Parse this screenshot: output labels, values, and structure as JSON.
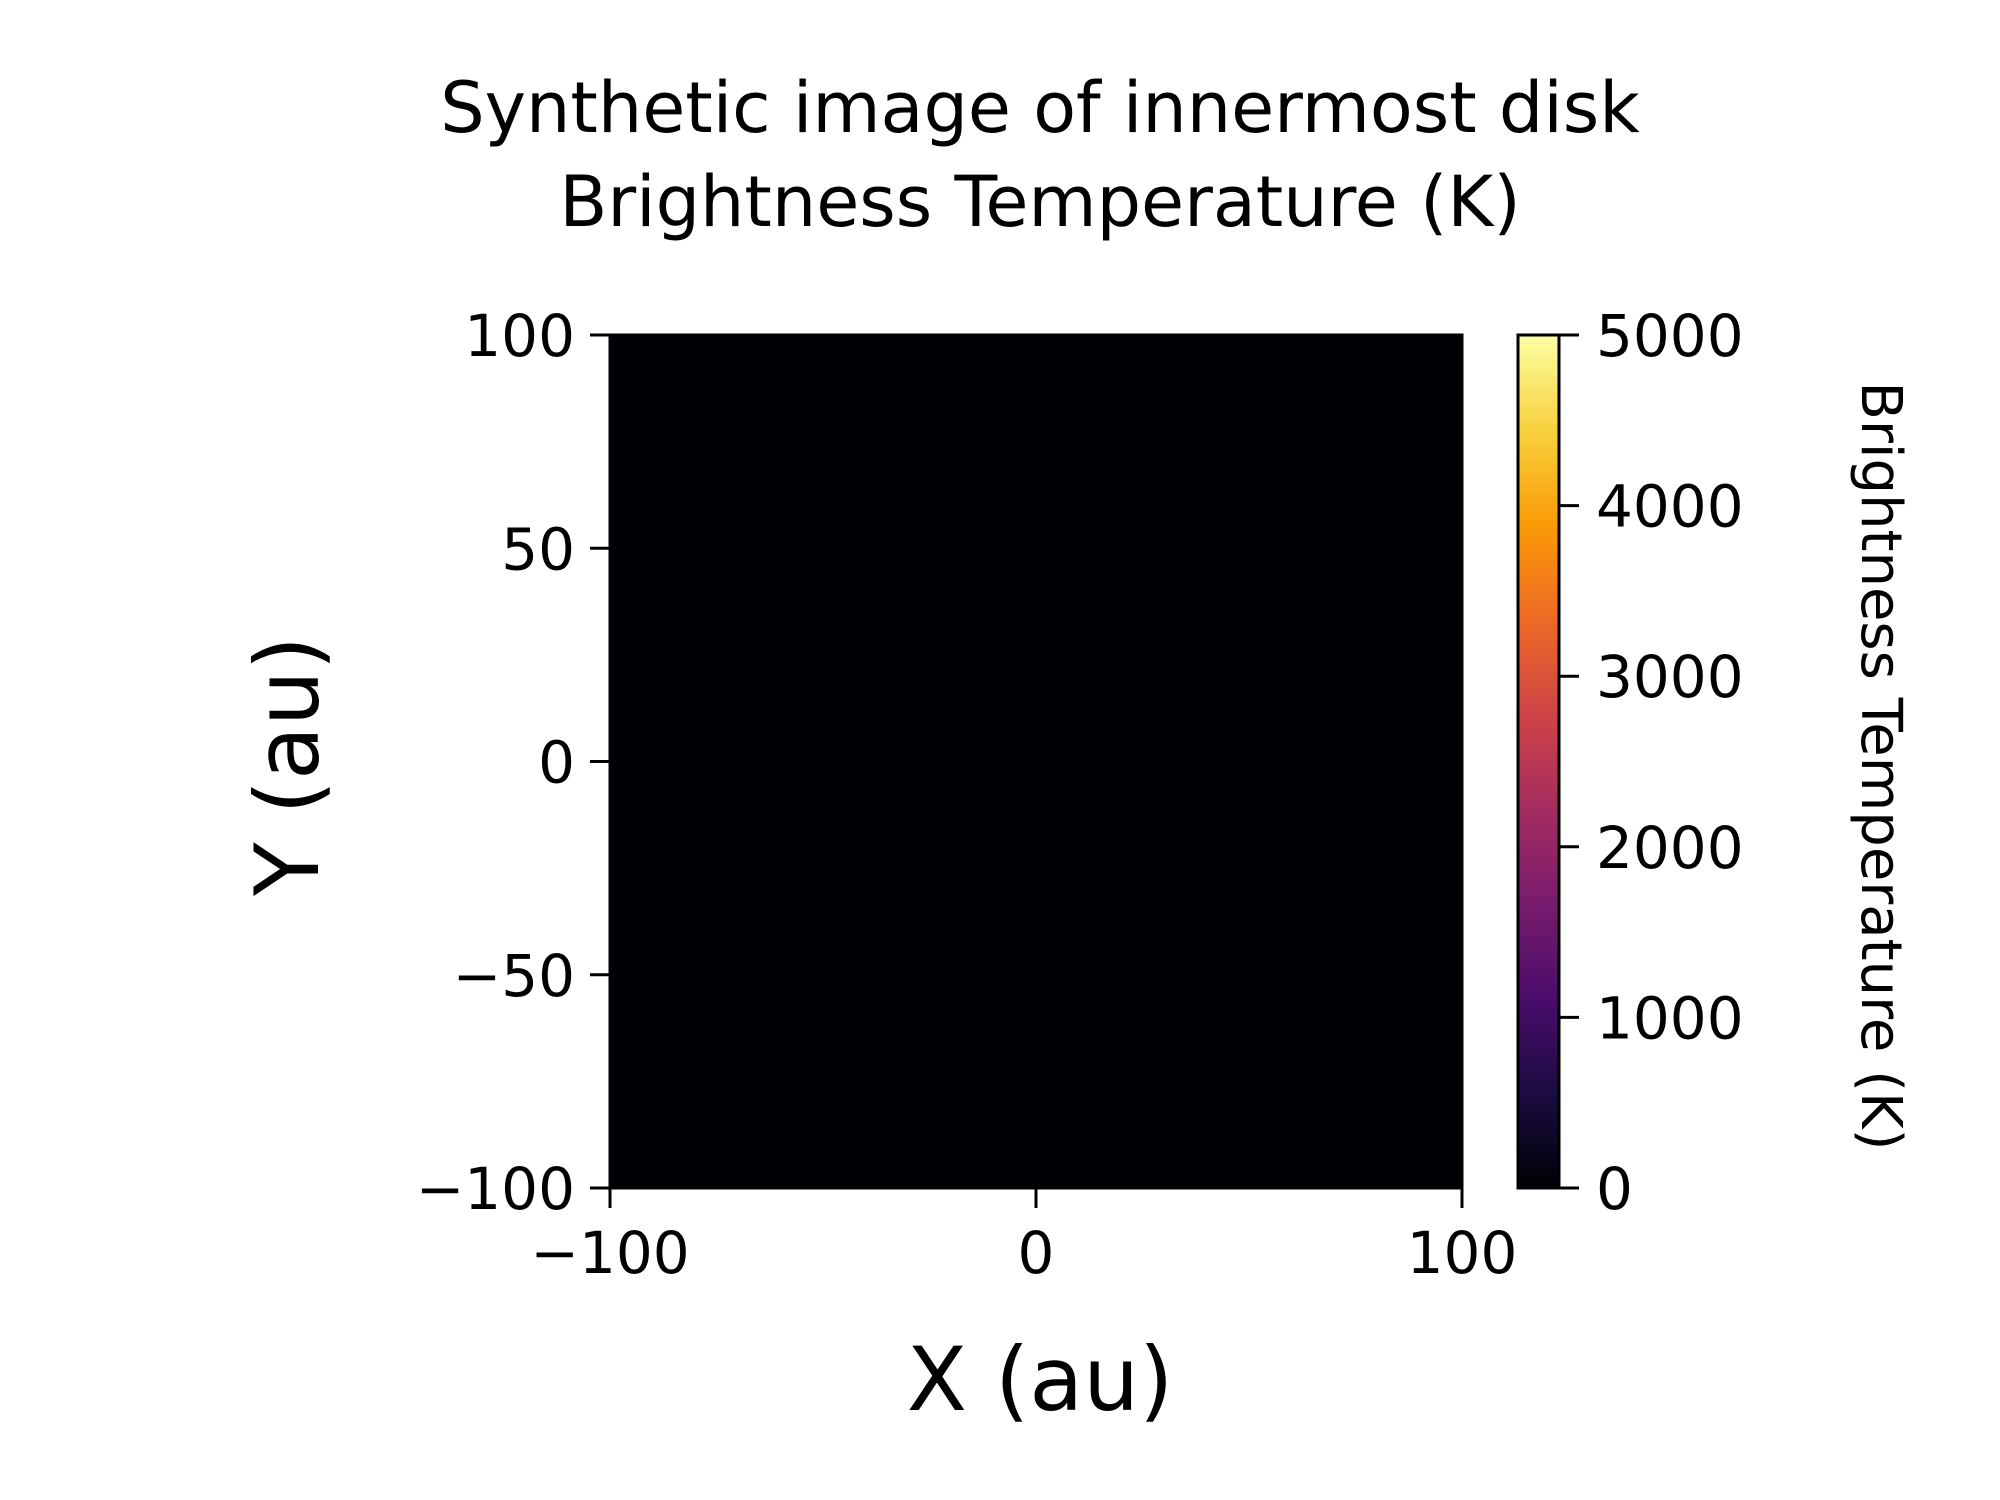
{
  "chart_data": {
    "type": "heatmap",
    "title_line1": "Synthetic image of innermost disk",
    "title_line2": "Brightness Temperature (K)",
    "xlabel": "X (au)",
    "ylabel": "Y (au)",
    "xlim": [
      -100,
      100
    ],
    "ylim": [
      -100,
      100
    ],
    "x_ticks": [
      -100,
      0,
      100
    ],
    "x_tick_labels": [
      "−100",
      "0",
      "100"
    ],
    "y_ticks": [
      -100,
      -50,
      0,
      50,
      100
    ],
    "y_tick_labels": [
      "−100",
      "−50",
      "0",
      "50",
      "100"
    ],
    "image_value": 0,
    "colorbar": {
      "label": "Brightness Temperature (K)",
      "range": [
        0,
        5000
      ],
      "ticks": [
        0,
        1000,
        2000,
        3000,
        4000,
        5000
      ],
      "tick_labels": [
        "0",
        "1000",
        "2000",
        "3000",
        "4000",
        "5000"
      ],
      "colormap": "inferno",
      "colormap_stops": [
        "#000004",
        "#1b0c41",
        "#4a0c6b",
        "#781c6d",
        "#a52c60",
        "#cf4446",
        "#ed6925",
        "#fb9b06",
        "#f7d13d",
        "#fcffa4"
      ]
    },
    "grid": false
  }
}
